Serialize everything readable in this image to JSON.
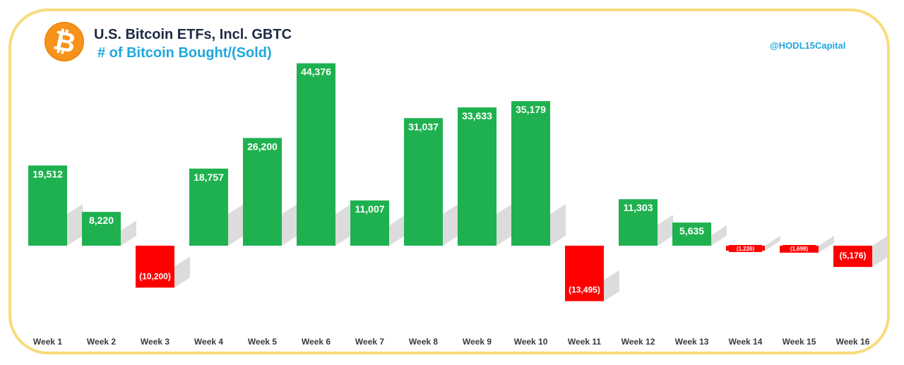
{
  "header": {
    "logo_glyph": "₿",
    "title": "U.S. Bitcoin ETFs, Incl. GBTC",
    "subtitle": "# of Bitcoin Bought/(Sold)",
    "handle": "@HODL15Capital"
  },
  "colors": {
    "positive": "#1fb14f",
    "negative": "#ff0000",
    "frame": "#f8db7e",
    "shadow": "#dcdcdc",
    "axis_label": "#3a3a3a"
  },
  "chart_data": {
    "type": "bar",
    "title": "U.S. Bitcoin ETFs, Incl. GBTC",
    "subtitle": "# of Bitcoin Bought/(Sold)",
    "categories": [
      "Week 1",
      "Week 2",
      "Week 3",
      "Week 4",
      "Week 5",
      "Week 6",
      "Week 7",
      "Week 8",
      "Week 9",
      "Week 10",
      "Week 11",
      "Week 12",
      "Week 13",
      "Week 14",
      "Week 15",
      "Week 16"
    ],
    "values": [
      19512,
      8220,
      -10200,
      18757,
      26200,
      44376,
      11007,
      31037,
      33633,
      35179,
      -13495,
      11303,
      5635,
      -1226,
      -1698,
      -5176
    ],
    "labels": [
      "19,512",
      "8,220",
      "(10,200)",
      "18,757",
      "26,200",
      "44,376",
      "11,007",
      "31,037",
      "33,633",
      "35,179",
      "(13,495)",
      "11,303",
      "5,635",
      "(1,226)",
      "(1,698)",
      "(5,176)"
    ],
    "xlabel": "",
    "ylabel": "",
    "ylim": [
      -17000,
      45000
    ],
    "grid": false,
    "legend": "none"
  }
}
